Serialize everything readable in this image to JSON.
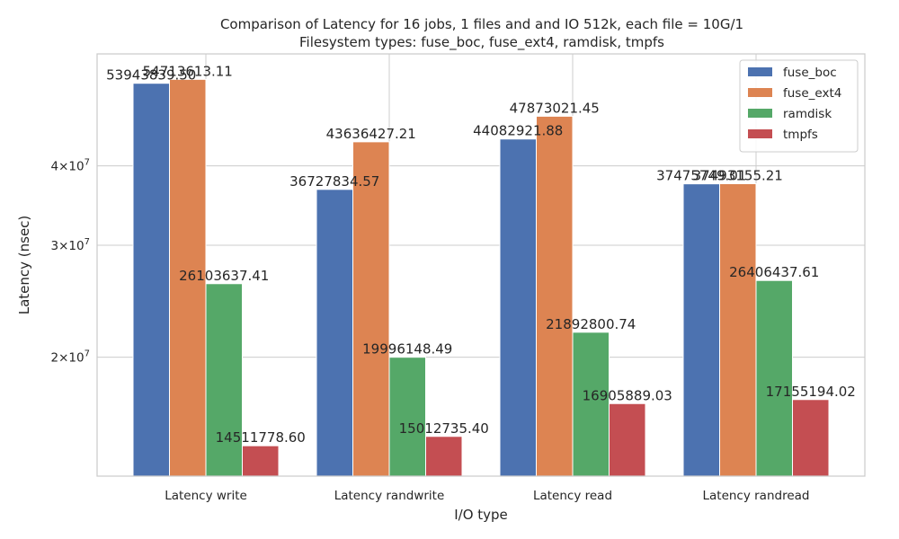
{
  "chart_data": {
    "type": "bar",
    "title_line1": "Comparison of Latency for 16 jobs, 1 files and  and IO 512k, each file = 10G/1",
    "title_line2": "Filesystem types: fuse_boc, fuse_ext4, ramdisk, tmpfs",
    "xlabel": "I/O type",
    "ylabel": "Latency (nsec)",
    "yscale": "log",
    "ylim": [
      13000000,
      60000000
    ],
    "yticks": [
      {
        "value": 20000000,
        "base": "2×10",
        "exp": "7"
      },
      {
        "value": 30000000,
        "base": "3×10",
        "exp": "7"
      },
      {
        "value": 40000000,
        "base": "4×10",
        "exp": "7"
      }
    ],
    "grid": true,
    "legend_position": "top-right",
    "categories": [
      "Latency write",
      "Latency randwrite",
      "Latency read",
      "Latency randread"
    ],
    "series": [
      {
        "name": "fuse_boc",
        "color": "#4c72b0",
        "values": [
          53943839.5,
          36727834.57,
          44082921.88,
          37475749.01
        ],
        "labels": [
          "53943839.50",
          "36727834.57",
          "44082921.88",
          "37475749.01"
        ]
      },
      {
        "name": "fuse_ext4",
        "color": "#dd8452",
        "values": [
          54713613.11,
          43636427.21,
          47873021.45,
          37493155.21
        ],
        "labels": [
          "54713613.11",
          "43636427.21",
          "47873021.45",
          "37493155.21"
        ]
      },
      {
        "name": "ramdisk",
        "color": "#55a868",
        "values": [
          26103637.41,
          19996148.49,
          21892800.74,
          26406437.61
        ],
        "labels": [
          "26103637.41",
          "19996148.49",
          "21892800.74",
          "26406437.61"
        ]
      },
      {
        "name": "tmpfs",
        "color": "#c44e52",
        "values": [
          14511778.6,
          15012735.4,
          16905889.03,
          17155194.02
        ],
        "labels": [
          "14511778.60",
          "15012735.40",
          "16905889.03",
          "17155194.02"
        ]
      }
    ]
  }
}
